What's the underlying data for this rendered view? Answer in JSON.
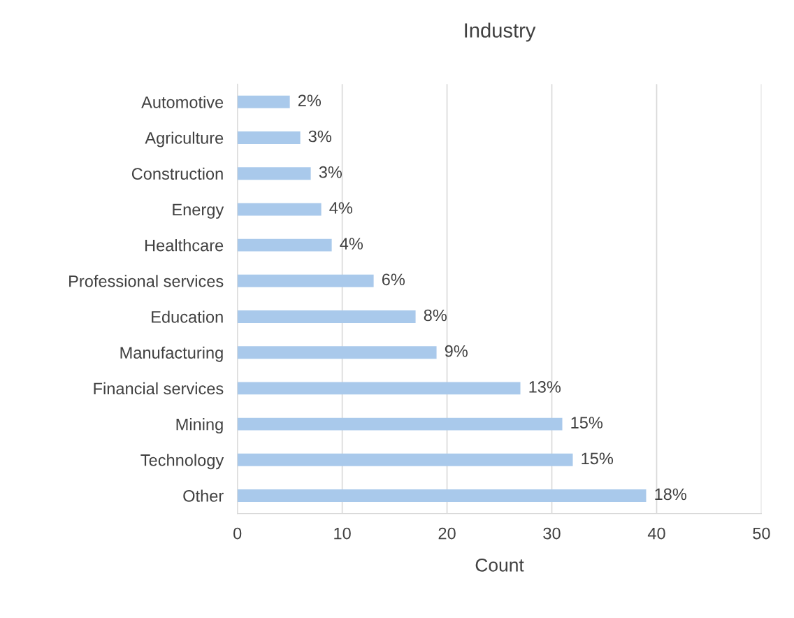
{
  "chart_data": {
    "type": "bar",
    "orientation": "horizontal",
    "title": "Industry",
    "xlabel": "Count",
    "categories": [
      "Automotive",
      "Agriculture",
      "Construction",
      "Energy",
      "Healthcare",
      "Professional services",
      "Education",
      "Manufacturing",
      "Financial services",
      "Mining",
      "Technology",
      "Other"
    ],
    "values": [
      5,
      6,
      7,
      8,
      9,
      13,
      17,
      19,
      27,
      31,
      32,
      39
    ],
    "annotations": [
      {
        "text": "2%",
        "x": 5,
        "y": "Automotive"
      },
      {
        "text": "3%",
        "x": 6,
        "y": "Agriculture"
      },
      {
        "text": "3%",
        "x": 7,
        "y": "Construction"
      },
      {
        "text": "4%",
        "x": 8,
        "y": "Energy"
      },
      {
        "text": "4%",
        "x": 9,
        "y": "Healthcare"
      },
      {
        "text": "6%",
        "x": 13,
        "y": "Professional services"
      },
      {
        "text": "8%",
        "x": 17,
        "y": "Education"
      },
      {
        "text": "9%",
        "x": 19,
        "y": "Manufacturing"
      },
      {
        "text": "13%",
        "x": 27,
        "y": "Financial services"
      },
      {
        "text": "15%",
        "x": 31,
        "y": "Mining"
      },
      {
        "text": "15%",
        "x": 32,
        "y": "Technology"
      },
      {
        "text": "18%",
        "x": 39,
        "y": "Other"
      }
    ],
    "color": "#a9c9eb",
    "xlim": [
      0,
      50
    ],
    "xticks": [
      0,
      10,
      20,
      30,
      40,
      50
    ],
    "grid": "x"
  }
}
